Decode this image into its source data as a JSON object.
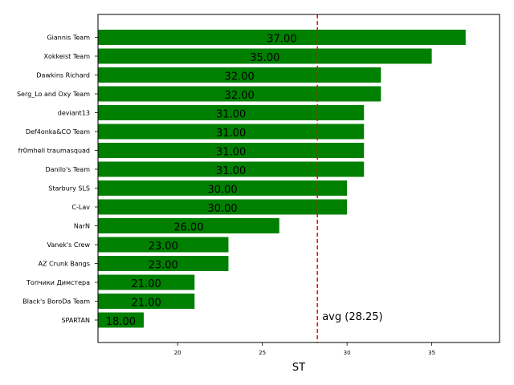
{
  "chart_data": {
    "type": "bar",
    "orientation": "horizontal",
    "categories": [
      "Giannis Team",
      "Xokkeist Team",
      "Dawkins Richard",
      "Serg_Lo and Oxy Team",
      "deviant13",
      "Def4onka&CO Team",
      "fr0mhell traumasquad",
      "Danilo's Team",
      "Starbury SLS",
      "C-Lav",
      "NarN",
      "Vanek's Crew",
      "AZ Crunk Bangs",
      "Топчики Димстера",
      "Black's BoroDa Team",
      "SPARTAN"
    ],
    "values": [
      37,
      35,
      32,
      32,
      31,
      31,
      31,
      31,
      30,
      30,
      26,
      23,
      23,
      21,
      21,
      18
    ],
    "value_labels": [
      "37.00",
      "35.00",
      "32.00",
      "32.00",
      "31.00",
      "31.00",
      "31.00",
      "31.00",
      "30.00",
      "30.00",
      "26.00",
      "23.00",
      "23.00",
      "21.00",
      "21.00",
      "18.00"
    ],
    "bar_color": "#008000",
    "xlabel": "ST",
    "ylabel": "",
    "title": "",
    "xlim": [
      15.3,
      39.0
    ],
    "xticks": [
      20,
      25,
      30,
      35
    ],
    "xtick_labels": [
      "20",
      "25",
      "30",
      "35"
    ],
    "grid": false,
    "average": {
      "value": 28.25,
      "label": "avg (28.25)",
      "color": "#ff0000",
      "style": "dashed"
    }
  }
}
